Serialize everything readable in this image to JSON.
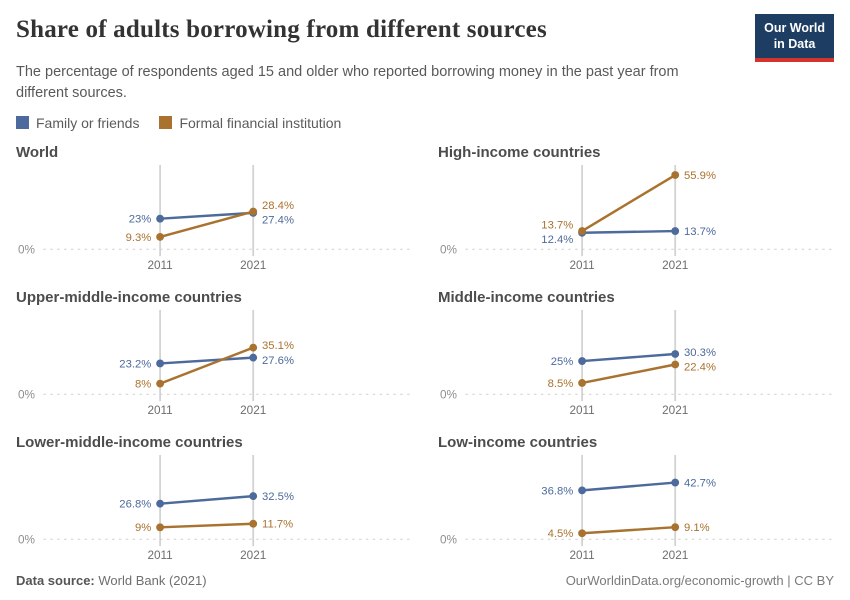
{
  "header": {
    "title": "Share of adults borrowing from different sources",
    "subtitle": "The percentage of respondents aged 15 and older who reported borrowing money in the past year from different sources."
  },
  "logo": {
    "line1": "Our World",
    "line2": "in Data",
    "bg_color": "#1d3d63",
    "accent_color": "#d1352b"
  },
  "legend": [
    {
      "label": "Family or friends",
      "color": "#4C6A9C"
    },
    {
      "label": "Formal financial institution",
      "color": "#A9722F"
    }
  ],
  "chart_data": {
    "type": "line",
    "x": [
      2011,
      2021
    ],
    "ylim": [
      0,
      62
    ],
    "zero_label": "0%",
    "grid": "vertical gridlines at each year; dashed horizontal zero line",
    "legend_position": "top-left",
    "series_names": [
      "Family or friends",
      "Formal financial institution"
    ],
    "series_colors": [
      "#4C6A9C",
      "#A9722F"
    ],
    "panels": [
      {
        "title": "World",
        "series": [
          {
            "name": "Family or friends",
            "color": "#4C6A9C",
            "values": [
              23,
              27.4
            ],
            "labels": [
              "23%",
              "27.4%"
            ]
          },
          {
            "name": "Formal financial institution",
            "color": "#A9722F",
            "values": [
              9.3,
              28.4
            ],
            "labels": [
              "9.3%",
              "28.4%"
            ]
          }
        ]
      },
      {
        "title": "High-income countries",
        "series": [
          {
            "name": "Family or friends",
            "color": "#4C6A9C",
            "values": [
              12.4,
              13.7
            ],
            "labels": [
              "12.4%",
              "13.7%"
            ]
          },
          {
            "name": "Formal financial institution",
            "color": "#A9722F",
            "values": [
              13.7,
              55.9
            ],
            "labels": [
              "13.7%",
              "55.9%"
            ]
          }
        ]
      },
      {
        "title": "Upper-middle-income countries",
        "series": [
          {
            "name": "Family or friends",
            "color": "#4C6A9C",
            "values": [
              23.2,
              27.6
            ],
            "labels": [
              "23.2%",
              "27.6%"
            ]
          },
          {
            "name": "Formal financial institution",
            "color": "#A9722F",
            "values": [
              8,
              35.1
            ],
            "labels": [
              "8%",
              "35.1%"
            ]
          }
        ]
      },
      {
        "title": "Middle-income countries",
        "series": [
          {
            "name": "Family or friends",
            "color": "#4C6A9C",
            "values": [
              25,
              30.3
            ],
            "labels": [
              "25%",
              "30.3%"
            ]
          },
          {
            "name": "Formal financial institution",
            "color": "#A9722F",
            "values": [
              8.5,
              22.4
            ],
            "labels": [
              "8.5%",
              "22.4%"
            ]
          }
        ]
      },
      {
        "title": "Lower-middle-income countries",
        "series": [
          {
            "name": "Family or friends",
            "color": "#4C6A9C",
            "values": [
              26.8,
              32.5
            ],
            "labels": [
              "26.8%",
              "32.5%"
            ]
          },
          {
            "name": "Formal financial institution",
            "color": "#A9722F",
            "values": [
              9,
              11.7
            ],
            "labels": [
              "9%",
              "11.7%"
            ]
          }
        ]
      },
      {
        "title": "Low-income countries",
        "series": [
          {
            "name": "Family or friends",
            "color": "#4C6A9C",
            "values": [
              36.8,
              42.7
            ],
            "labels": [
              "36.8%",
              "42.7%"
            ]
          },
          {
            "name": "Formal financial institution",
            "color": "#A9722F",
            "values": [
              4.5,
              9.1
            ],
            "labels": [
              "4.5%",
              "9.1%"
            ]
          }
        ]
      }
    ]
  },
  "footer": {
    "data_source_label": "Data source:",
    "data_source_value": "World Bank (2021)",
    "link": "OurWorldinData.org/economic-growth",
    "separator": " | ",
    "license": "CC BY"
  }
}
